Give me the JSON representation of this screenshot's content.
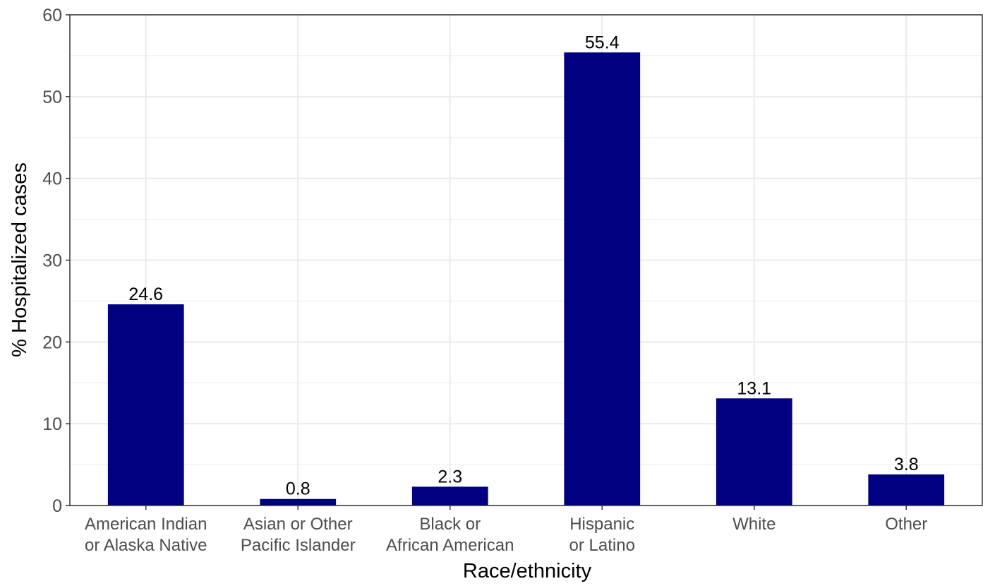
{
  "chart_data": {
    "type": "bar",
    "title": "",
    "xlabel": "Race/ethnicity",
    "ylabel": "% Hospitalized cases",
    "categories": [
      [
        "American Indian",
        "or Alaska Native"
      ],
      [
        "Asian or Other",
        "Pacific Islander"
      ],
      [
        "Black or",
        "African American"
      ],
      [
        "Hispanic",
        "or Latino"
      ],
      [
        "White"
      ],
      [
        "Other"
      ]
    ],
    "values": [
      24.6,
      0.8,
      2.3,
      55.4,
      13.1,
      3.8
    ],
    "value_labels": [
      "24.6",
      "0.8",
      "2.3",
      "55.4",
      "13.1",
      "3.8"
    ],
    "ylim": [
      0,
      60
    ],
    "yticks": [
      0,
      10,
      20,
      30,
      40,
      50,
      60
    ],
    "grid": true,
    "legend": "none",
    "bar_color": "#000080",
    "grid_color": "#ebebeb"
  }
}
